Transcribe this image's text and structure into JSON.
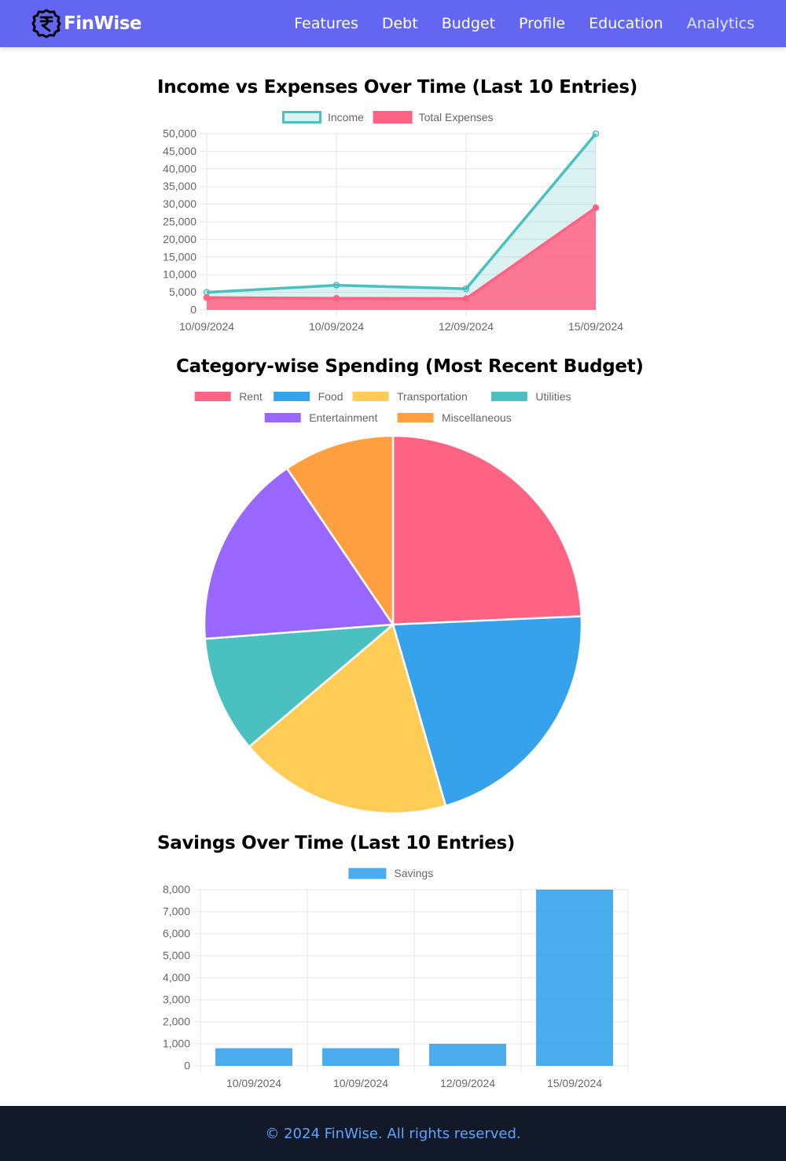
{
  "nav": {
    "brand": "FinWise",
    "links": [
      "Features",
      "Debt",
      "Budget",
      "Profile",
      "Education",
      "Analytics"
    ]
  },
  "colors": {
    "nav_bg": "#6366f1",
    "income": "#4bc0c0",
    "expenses": "#ff6384",
    "savings": "#36a2eb",
    "footer_bg": "#111827",
    "footer_text": "#60a5fa"
  },
  "chart_data": [
    {
      "type": "line",
      "title": "Income vs Expenses Over Time (Last 10 Entries)",
      "categories": [
        "10/09/2024",
        "10/09/2024",
        "12/09/2024",
        "15/09/2024"
      ],
      "series": [
        {
          "name": "Income",
          "values": [
            5000,
            7000,
            6000,
            50000
          ],
          "color": "#4bc0c0"
        },
        {
          "name": "Total Expenses",
          "values": [
            3500,
            3300,
            3200,
            29000
          ],
          "color": "#ff6384"
        }
      ],
      "yticks": [
        "0",
        "5,000",
        "10,000",
        "15,000",
        "20,000",
        "25,000",
        "30,000",
        "35,000",
        "40,000",
        "45,000",
        "50,000"
      ],
      "ylim": [
        0,
        50000
      ],
      "legend": "top"
    },
    {
      "type": "pie",
      "title": "Category-wise Spending (Most Recent Budget)",
      "labels": [
        "Rent",
        "Food",
        "Transportation",
        "Utilities",
        "Entertainment",
        "Miscellaneous"
      ],
      "values": [
        24.3,
        21.2,
        18.3,
        10.0,
        16.7,
        9.5
      ],
      "colors": [
        "#ff6384",
        "#36a2eb",
        "#ffcd56",
        "#4bc0c0",
        "#9966ff",
        "#ff9f40"
      ],
      "legend": "top"
    },
    {
      "type": "bar",
      "title": "Savings Over Time (Last 10 Entries)",
      "categories": [
        "10/09/2024",
        "10/09/2024",
        "12/09/2024",
        "15/09/2024"
      ],
      "series": [
        {
          "name": "Savings",
          "values": [
            800,
            800,
            1000,
            8000
          ],
          "color": "#36a2eb"
        }
      ],
      "yticks": [
        "0",
        "1,000",
        "2,000",
        "3,000",
        "4,000",
        "5,000",
        "6,000",
        "7,000",
        "8,000"
      ],
      "ylim": [
        0,
        8000
      ],
      "legend": "top"
    }
  ],
  "footer": {
    "text": "© 2024 FinWise. All rights reserved."
  }
}
